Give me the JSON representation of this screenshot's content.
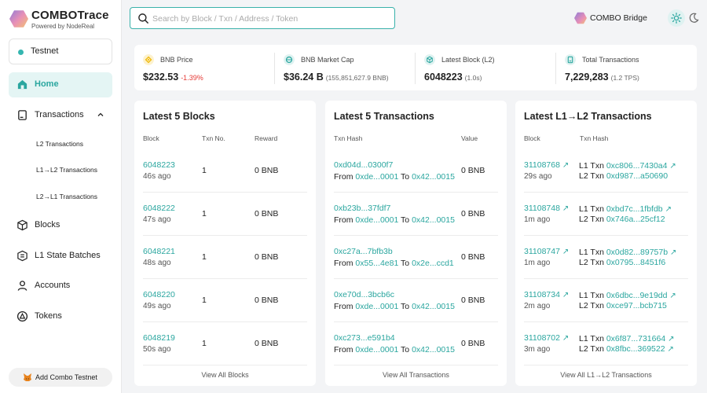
{
  "brand": {
    "title": "COMBOTrace",
    "subtitle": "Powered by NodeReal"
  },
  "network": {
    "label": "Testnet"
  },
  "nav": {
    "home": "Home",
    "transactions": "Transactions",
    "sub": [
      "L2 Transactions",
      "L1→L2 Transactions",
      "L2→L1 Transactions"
    ],
    "blocks": "Blocks",
    "batches": "L1 State Batches",
    "accounts": "Accounts",
    "tokens": "Tokens"
  },
  "add_network": "Add Combo Testnet",
  "search": {
    "placeholder": "Search by Block / Txn / Address / Token"
  },
  "bridge": {
    "label": "COMBO Bridge"
  },
  "stats": {
    "bnb_price": {
      "label": "BNB Price",
      "value": "$232.53",
      "change": "-1.39%"
    },
    "market_cap": {
      "label": "BNB Market Cap",
      "value": "$36.24 B",
      "extra": "(155,851,627.9 BNB)"
    },
    "latest_block": {
      "label": "Latest Block (L2)",
      "value": "6048223",
      "extra": "(1.0s)"
    },
    "total_tx": {
      "label": "Total Transactions",
      "value": "7,229,283",
      "extra": "(1.2 TPS)"
    }
  },
  "colors": {
    "accent": "#2aa69f",
    "negative": "#e53935",
    "bnb": "#f0b90b"
  },
  "blocks_panel": {
    "title": "Latest 5 Blocks",
    "cols": [
      "Block",
      "Txn No.",
      "Reward"
    ],
    "rows": [
      {
        "block": "6048223",
        "age": "46s ago",
        "txns": "1",
        "reward": "0 BNB"
      },
      {
        "block": "6048222",
        "age": "47s ago",
        "txns": "1",
        "reward": "0 BNB"
      },
      {
        "block": "6048221",
        "age": "48s ago",
        "txns": "1",
        "reward": "0 BNB"
      },
      {
        "block": "6048220",
        "age": "49s ago",
        "txns": "1",
        "reward": "0 BNB"
      },
      {
        "block": "6048219",
        "age": "50s ago",
        "txns": "1",
        "reward": "0 BNB"
      }
    ],
    "view_all": "View All Blocks"
  },
  "tx_panel": {
    "title": "Latest 5 Transactions",
    "cols": [
      "Txn Hash",
      "Value"
    ],
    "from_label": "From",
    "to_label": "To",
    "rows": [
      {
        "hash": "0xd04d...0300f7",
        "from": "0xde...0001",
        "to": "0x42...0015",
        "value": "0 BNB"
      },
      {
        "hash": "0xb23b...37fdf7",
        "from": "0xde...0001",
        "to": "0x42...0015",
        "value": "0 BNB"
      },
      {
        "hash": "0xc27a...7bfb3b",
        "from": "0x55...4e81",
        "to": "0x2e...ccd1",
        "value": "0 BNB"
      },
      {
        "hash": "0xe70d...3bcb6c",
        "from": "0xde...0001",
        "to": "0x42...0015",
        "value": "0 BNB"
      },
      {
        "hash": "0xc273...e591b4",
        "from": "0xde...0001",
        "to": "0x42...0015",
        "value": "0 BNB"
      }
    ],
    "view_all": "View All Transactions"
  },
  "l1l2_panel": {
    "title": "Latest L1→L2 Transactions",
    "cols": [
      "Block",
      "Txn Hash"
    ],
    "l1_label": "L1 Txn",
    "l2_label": "L2 Txn",
    "rows": [
      {
        "block": "31108768",
        "age": "29s ago",
        "l1": "0xc806...7430a4",
        "l2": "0xd987...a50690"
      },
      {
        "block": "31108748",
        "age": "1m ago",
        "l1": "0xbd7c...1fbfdb",
        "l2": "0x746a...25cf12"
      },
      {
        "block": "31108747",
        "age": "1m ago",
        "l1": "0x0d82...89757b",
        "l2": "0x0795...8451f6"
      },
      {
        "block": "31108734",
        "age": "2m ago",
        "l1": "0x6dbc...9e19dd",
        "l2": "0xce97...bcb715"
      },
      {
        "block": "31108702",
        "age": "3m ago",
        "l1": "0x6f87...731664",
        "l2": "0x8fbc...369522"
      }
    ],
    "view_all": "View All L1→L2 Transactions"
  }
}
